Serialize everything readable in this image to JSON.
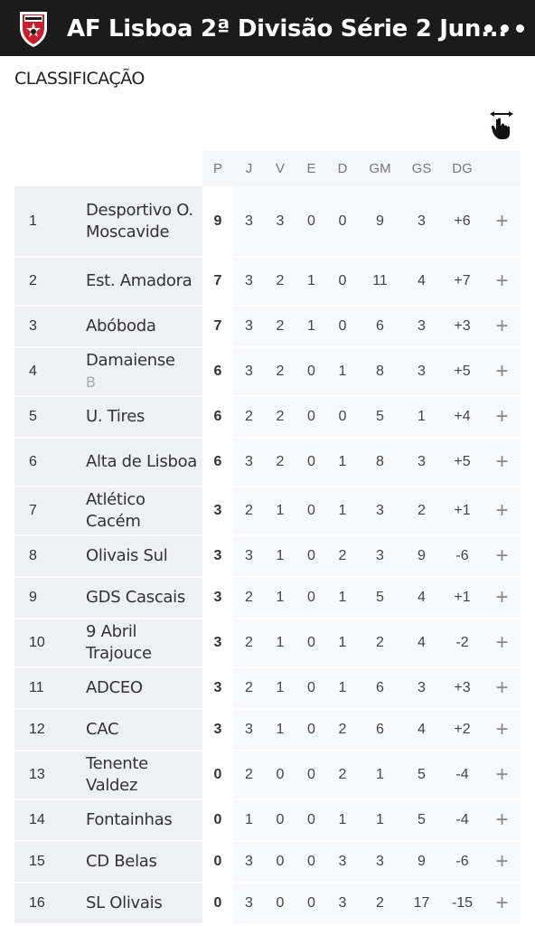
{
  "header": {
    "title": "AF Lisboa 2ª Divisão Série 2 Jun...",
    "menu_icon": "more-horizontal-icon",
    "logo_icon": "af-lisboa-crest-icon"
  },
  "section_title": "CLASSIFICAÇÃO",
  "swipe_icon": "swipe-hand-icon",
  "columns": [
    "P",
    "J",
    "V",
    "E",
    "D",
    "GM",
    "GS",
    "DG"
  ],
  "expand_symbol": "+",
  "standings": [
    {
      "pos": "1",
      "team": "Desportivo O. Moscavide",
      "suffix": "",
      "p": "9",
      "j": "3",
      "v": "3",
      "e": "0",
      "d": "0",
      "gm": "9",
      "gs": "3",
      "dg": "+6"
    },
    {
      "pos": "2",
      "team": "Est. Amadora",
      "suffix": "",
      "p": "7",
      "j": "3",
      "v": "2",
      "e": "1",
      "d": "0",
      "gm": "11",
      "gs": "4",
      "dg": "+7"
    },
    {
      "pos": "3",
      "team": "Abóboda",
      "suffix": "",
      "p": "7",
      "j": "3",
      "v": "2",
      "e": "1",
      "d": "0",
      "gm": "6",
      "gs": "3",
      "dg": "+3"
    },
    {
      "pos": "4",
      "team": "Damaiense",
      "suffix": "B",
      "p": "6",
      "j": "3",
      "v": "2",
      "e": "0",
      "d": "1",
      "gm": "8",
      "gs": "3",
      "dg": "+5"
    },
    {
      "pos": "5",
      "team": "U. Tires",
      "suffix": "",
      "p": "6",
      "j": "2",
      "v": "2",
      "e": "0",
      "d": "0",
      "gm": "5",
      "gs": "1",
      "dg": "+4"
    },
    {
      "pos": "6",
      "team": "Alta de Lisboa",
      "suffix": "",
      "p": "6",
      "j": "3",
      "v": "2",
      "e": "0",
      "d": "1",
      "gm": "8",
      "gs": "3",
      "dg": "+5"
    },
    {
      "pos": "7",
      "team": "Atlético Cacém",
      "suffix": "",
      "p": "3",
      "j": "2",
      "v": "1",
      "e": "0",
      "d": "1",
      "gm": "3",
      "gs": "2",
      "dg": "+1"
    },
    {
      "pos": "8",
      "team": "Olivais Sul",
      "suffix": "",
      "p": "3",
      "j": "3",
      "v": "1",
      "e": "0",
      "d": "2",
      "gm": "3",
      "gs": "9",
      "dg": "-6"
    },
    {
      "pos": "9",
      "team": "GDS Cascais",
      "suffix": "",
      "p": "3",
      "j": "2",
      "v": "1",
      "e": "0",
      "d": "1",
      "gm": "5",
      "gs": "4",
      "dg": "+1"
    },
    {
      "pos": "10",
      "team": "9 Abril Trajouce",
      "suffix": "",
      "p": "3",
      "j": "2",
      "v": "1",
      "e": "0",
      "d": "1",
      "gm": "2",
      "gs": "4",
      "dg": "-2"
    },
    {
      "pos": "11",
      "team": "ADCEO",
      "suffix": "",
      "p": "3",
      "j": "2",
      "v": "1",
      "e": "0",
      "d": "1",
      "gm": "6",
      "gs": "3",
      "dg": "+3"
    },
    {
      "pos": "12",
      "team": "CAC",
      "suffix": "",
      "p": "3",
      "j": "3",
      "v": "1",
      "e": "0",
      "d": "2",
      "gm": "6",
      "gs": "4",
      "dg": "+2"
    },
    {
      "pos": "13",
      "team": "Tenente Valdez",
      "suffix": "",
      "p": "0",
      "j": "2",
      "v": "0",
      "e": "0",
      "d": "2",
      "gm": "1",
      "gs": "5",
      "dg": "-4"
    },
    {
      "pos": "14",
      "team": "Fontainhas",
      "suffix": "",
      "p": "0",
      "j": "1",
      "v": "0",
      "e": "0",
      "d": "1",
      "gm": "1",
      "gs": "5",
      "dg": "-4"
    },
    {
      "pos": "15",
      "team": "CD Belas",
      "suffix": "",
      "p": "0",
      "j": "3",
      "v": "0",
      "e": "0",
      "d": "3",
      "gm": "3",
      "gs": "9",
      "dg": "-6"
    },
    {
      "pos": "16",
      "team": "SL Olivais",
      "suffix": "",
      "p": "0",
      "j": "3",
      "v": "0",
      "e": "0",
      "d": "3",
      "gm": "2",
      "gs": "17",
      "dg": "-15"
    }
  ]
}
